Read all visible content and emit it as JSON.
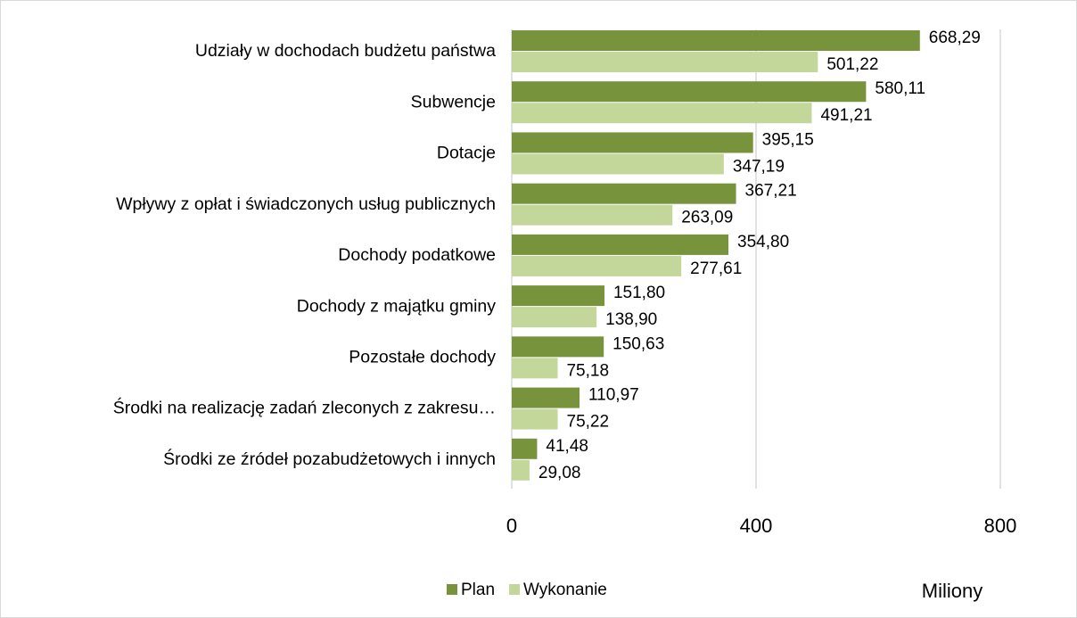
{
  "chart_data": {
    "type": "hbar",
    "categories": [
      "Udziały w dochodach budżetu państwa",
      "Subwencje",
      "Dotacje",
      "Wpływy z opłat i świadczonych usług publicznych",
      "Dochody podatkowe",
      "Dochody z majątku gminy",
      "Pozostałe dochody",
      "Środki na realizację zadań zleconych z zakresu…",
      "Środki ze źródeł pozabudżetowych i innych"
    ],
    "series": [
      {
        "name": "Plan",
        "color": "#77933c",
        "values": [
          668.29,
          580.11,
          395.15,
          367.21,
          354.8,
          151.8,
          150.63,
          110.97,
          41.48
        ],
        "value_labels": [
          "668,29",
          "580,11",
          "395,15",
          "367,21",
          "354,80",
          "151,80",
          "150,63",
          "110,97",
          "41,48"
        ]
      },
      {
        "name": "Wykonanie",
        "color": "#c4d79b",
        "values": [
          501.22,
          491.21,
          347.19,
          263.09,
          277.61,
          138.9,
          75.18,
          75.22,
          29.08
        ],
        "value_labels": [
          "501,22",
          "491,21",
          "347,19",
          "263,09",
          "277,61",
          "138,90",
          "75,18",
          "75,22",
          "29,08"
        ]
      }
    ],
    "xlim": [
      0,
      800
    ],
    "xticks": [
      0,
      400,
      800
    ],
    "x_label": "Miliony",
    "grid": true,
    "legend": "bottom"
  }
}
